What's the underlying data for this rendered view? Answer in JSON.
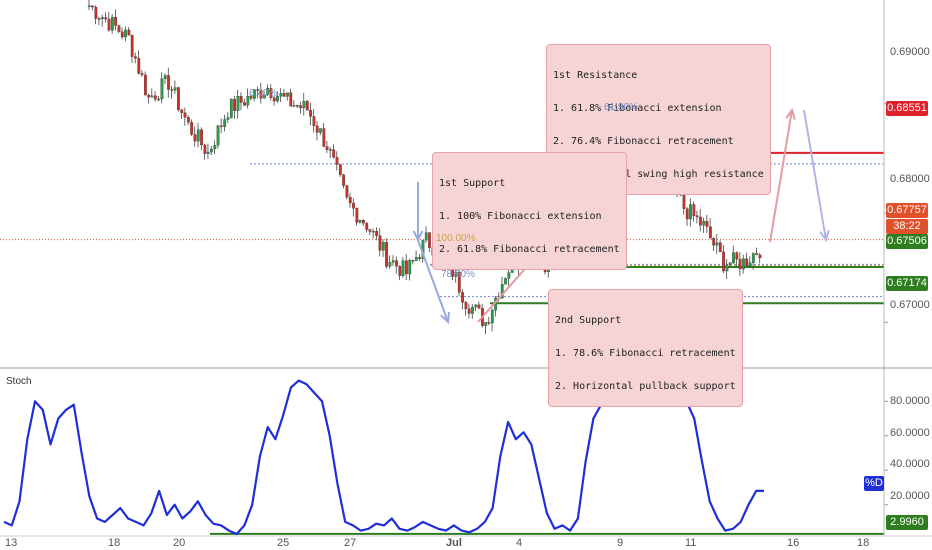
{
  "chart_data": [
    {
      "type": "candlestick",
      "ylim": [
        0.666,
        0.6995
      ],
      "yticks": [
        "0.69000",
        "0.68000",
        "0.67000"
      ],
      "xticks": [
        "13",
        "18",
        "20",
        "25",
        "27",
        "Jul",
        "4",
        "9",
        "11",
        "16",
        "18"
      ],
      "close_path": [
        [
          0.699,
          0.6993
        ],
        [
          0.6975,
          0.6982
        ],
        [
          0.696,
          0.6975
        ],
        [
          0.6905,
          0.693
        ],
        [
          0.692,
          0.691
        ],
        [
          0.688,
          0.6895
        ],
        [
          0.6855,
          0.687
        ],
        [
          0.6895,
          0.69
        ],
        [
          0.6905,
          0.691
        ],
        [
          0.6915,
          0.6905
        ],
        [
          0.6902,
          0.6898
        ],
        [
          0.6895,
          0.688
        ],
        [
          0.6862,
          0.684
        ],
        [
          0.681,
          0.6795
        ],
        [
          0.679,
          0.6775
        ],
        [
          0.676,
          0.6748
        ],
        [
          0.6745,
          0.675
        ],
        [
          0.6775,
          0.6765
        ],
        [
          0.676,
          0.6745
        ],
        [
          0.672,
          0.669
        ],
        [
          0.67,
          0.6718
        ],
        [
          0.6745,
          0.676
        ],
        [
          0.677,
          0.676
        ],
        [
          0.6755,
          0.6765
        ],
        [
          0.6775,
          0.679
        ],
        [
          0.6805,
          0.682
        ],
        [
          0.6835,
          0.6845
        ],
        [
          0.6845,
          0.684
        ],
        [
          0.6835,
          0.6843
        ],
        [
          0.6838,
          0.6815
        ],
        [
          0.6805,
          0.68
        ],
        [
          0.6788,
          0.677
        ],
        [
          0.6755,
          0.6752
        ],
        [
          0.6755,
          0.6765
        ],
        [
          0.677,
          0.6775
        ]
      ],
      "levels": [
        {
          "label": "0.68551",
          "value": 0.68551,
          "color": "#e0212b",
          "style": "solid"
        },
        {
          "label": "0.67757",
          "value": 0.67757,
          "color": "#e0502b",
          "style": "dotted"
        },
        {
          "label": "0.67506",
          "value": 0.67506,
          "color": "#2e7d1f",
          "style": "solid"
        },
        {
          "label": "0.67174",
          "value": 0.67174,
          "color": "#2e7d1f",
          "style": "solid"
        }
      ],
      "fib_labels": [
        "6.40%",
        "61.80%",
        "100.00%",
        "78.60%"
      ],
      "countdown": "38:22",
      "annotations": [
        {
          "name": "1st-resistance",
          "lines": [
            "1st Resistance",
            "1. 61.8% Fibonacci extension",
            "2. 76.4% Fibonacci retracement",
            "3. Horizontal swing high resistance"
          ]
        },
        {
          "name": "1st-support",
          "lines": [
            "1st Support",
            "1. 100% Fibonacci extension",
            "2. 61.8% Fibonacci retracement"
          ]
        },
        {
          "name": "2nd-support",
          "lines": [
            "2nd Support",
            "1. 78.6% Fibonacci retracement",
            "2. Horizontal pullback support"
          ]
        }
      ]
    },
    {
      "type": "line",
      "name": "Stoch",
      "ylim": [
        3,
        97
      ],
      "yticks": [
        "80.0000",
        "60.0000",
        "40.0000",
        "20.0000"
      ],
      "series_label": "%D",
      "level_label": "2.9960",
      "values": [
        10,
        8,
        22,
        58,
        80,
        75,
        55,
        70,
        75,
        78,
        50,
        25,
        12,
        10,
        14,
        18,
        12,
        10,
        8,
        15,
        28,
        14,
        20,
        12,
        16,
        22,
        14,
        9,
        8,
        5,
        3,
        8,
        20,
        48,
        65,
        58,
        72,
        88,
        92,
        90,
        85,
        80,
        60,
        32,
        10,
        8,
        5,
        6,
        9,
        8,
        12,
        6,
        5,
        7,
        10,
        8,
        6,
        5,
        8,
        5,
        4,
        6,
        10,
        18,
        48,
        68,
        58,
        62,
        55,
        35,
        15,
        6,
        8,
        5,
        12,
        45,
        70,
        78,
        88,
        85,
        92,
        95,
        88,
        90,
        92,
        85,
        90,
        91,
        80,
        70,
        45,
        22,
        12,
        5,
        6,
        10,
        20,
        28,
        28
      ]
    }
  ],
  "subwindow_title": "Stoch"
}
